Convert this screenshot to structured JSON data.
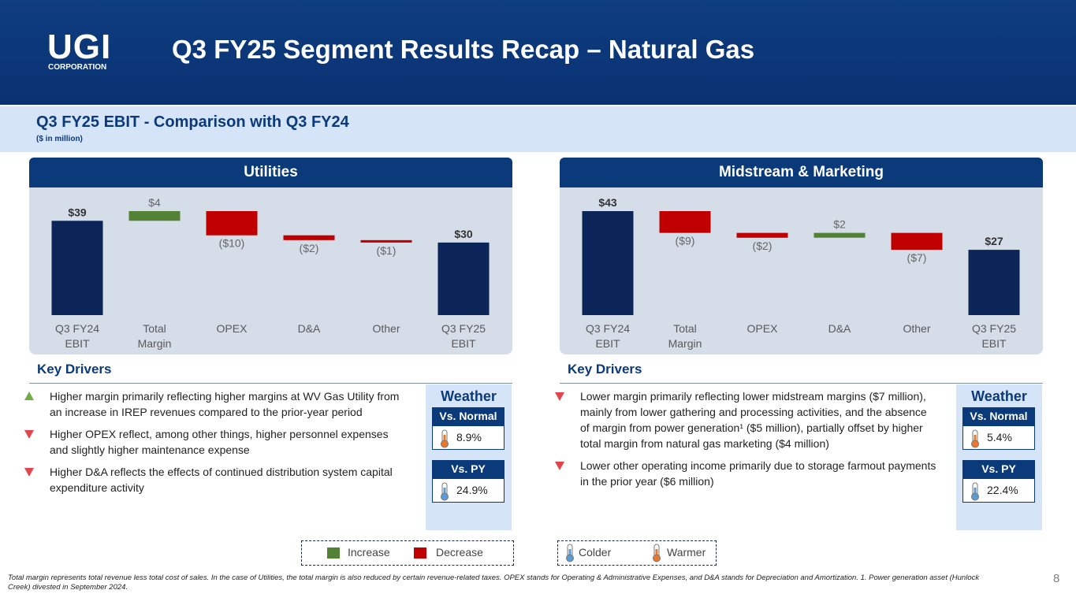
{
  "header": {
    "logo": "UGI",
    "logo_sub": "CORPORATION",
    "title": "Q3 FY25 Segment Results Recap – Natural Gas"
  },
  "subheader": {
    "title": "Q3 FY25 EBIT - Comparison with Q3 FY24",
    "note": "($ in million)"
  },
  "chart_data": [
    {
      "type": "waterfall",
      "title": "Utilities",
      "categories": [
        "Q3 FY24 EBIT",
        "Total Margin",
        "OPEX",
        "D&A",
        "Other",
        "Q3 FY25 EBIT"
      ],
      "values": [
        39,
        4,
        -10,
        -2,
        -1,
        30
      ],
      "value_labels": [
        "$39",
        "$4",
        "($10)",
        "($2)",
        "($1)",
        "$30"
      ],
      "measures": [
        "total",
        "relative",
        "relative",
        "relative",
        "relative",
        "total"
      ],
      "colors": {
        "total": "#0b2559",
        "increase": "#538135",
        "decrease": "#c00000"
      }
    },
    {
      "type": "waterfall",
      "title": "Midstream & Marketing",
      "categories": [
        "Q3 FY24 EBIT",
        "Total Margin",
        "OPEX",
        "D&A",
        "Other",
        "Q3 FY25 EBIT"
      ],
      "values": [
        43,
        -9,
        -2,
        2,
        -7,
        27
      ],
      "value_labels": [
        "$43",
        "($9)",
        "($2)",
        "$2",
        "($7)",
        "$27"
      ],
      "measures": [
        "total",
        "relative",
        "relative",
        "relative",
        "relative",
        "total"
      ],
      "colors": {
        "total": "#0b2559",
        "increase": "#538135",
        "decrease": "#c00000"
      }
    }
  ],
  "panels": [
    {
      "drivers_title": "Key Drivers",
      "drivers": [
        {
          "dir": "up",
          "text": "Higher margin primarily reflecting higher margins at WV Gas Utility from an increase in IREP revenues compared to the prior-year period"
        },
        {
          "dir": "down",
          "text": "Higher OPEX reflect, among other things, higher personnel expenses and slightly higher maintenance expense"
        },
        {
          "dir": "down",
          "text": "Higher D&A reflects the effects of continued distribution system capital expenditure activity"
        }
      ],
      "weather": {
        "title": "Weather",
        "items": [
          {
            "label": "Vs. Normal",
            "value": "8.9%",
            "icon": "warmer"
          },
          {
            "label": "Vs. PY",
            "value": "24.9%",
            "icon": "colder"
          }
        ]
      }
    },
    {
      "drivers_title": "Key Drivers",
      "drivers": [
        {
          "dir": "down",
          "text": "Lower margin primarily reflecting lower midstream margins ($7 million), mainly from lower gathering and processing activities, and the absence of margin from power generation¹ ($5 million), partially offset by higher total margin from natural gas marketing ($4 million)"
        },
        {
          "dir": "down",
          "text": "Lower other operating income primarily due to storage farmout payments in the prior year ($6 million)"
        }
      ],
      "weather": {
        "title": "Weather",
        "items": [
          {
            "label": "Vs. Normal",
            "value": "5.4%",
            "icon": "warmer"
          },
          {
            "label": "Vs. PY",
            "value": "22.4%",
            "icon": "colder"
          }
        ]
      }
    }
  ],
  "legend": {
    "increase": "Increase",
    "decrease": "Decrease",
    "colder": "Colder",
    "warmer": "Warmer"
  },
  "footnote": "Total margin represents total revenue less total cost of sales. In the case of Utilities, the total margin is also reduced by certain revenue-related taxes. OPEX stands for Operating & Administrative Expenses, and D&A stands for Depreciation and Amortization. 1. Power generation asset (Hunlock Creek) divested in September 2024.",
  "page_number": "8"
}
